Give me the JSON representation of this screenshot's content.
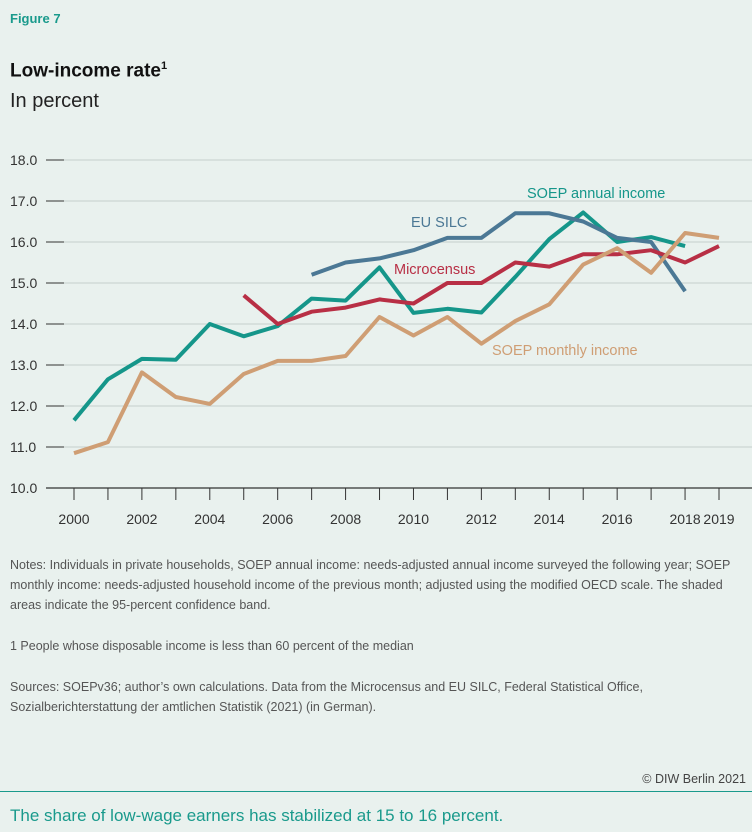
{
  "figure_label": "Figure 7",
  "title": "Low-income rate",
  "title_footnote": "1",
  "subtitle": "In percent",
  "notes": "Notes: Individuals in private households, SOEP annual income: needs-adjusted annual income surveyed the following year; SOEP monthly income: needs-adjusted household income of the previous month; adjusted using the modified OECD scale. The shaded areas indicate the 95-percent confidence band.",
  "footnote": "1  People whose disposable income is less than 60 percent of the median",
  "sources": "Sources: SOEPv36; author’s own calculations. Data from the Microcensus and EU SILC, Federal Statistical Office, Sozialberichterstattung der amtlichen Statistik (2021) (in German).",
  "copyright": "© DIW Berlin 2021",
  "takeaway": "The share of low-wage earners has stabilized at 15 to 16 percent.",
  "chart_data": {
    "type": "line",
    "xlim": [
      2000,
      2019
    ],
    "ylim": [
      10,
      18
    ],
    "y_ticks": [
      "10.0",
      "11.0",
      "12.0",
      "13.0",
      "14.0",
      "15.0",
      "16.0",
      "17.0",
      "18.0"
    ],
    "x_tick_labels": [
      "2000",
      "2002",
      "2004",
      "2006",
      "2008",
      "2010",
      "2012",
      "2014",
      "2016",
      "2018",
      "2019"
    ],
    "grid": true,
    "series": [
      {
        "name": "SOEP annual income",
        "color": "#15968a",
        "x": [
          2000,
          2001,
          2002,
          2003,
          2004,
          2005,
          2006,
          2007,
          2008,
          2009,
          2010,
          2011,
          2012,
          2013,
          2014,
          2015,
          2016,
          2017,
          2018
        ],
        "y": [
          11.65,
          12.65,
          13.15,
          13.13,
          14.0,
          13.7,
          13.95,
          14.62,
          14.57,
          15.38,
          14.27,
          14.37,
          14.28,
          15.15,
          16.07,
          16.72,
          16.0,
          16.12,
          15.9
        ]
      },
      {
        "name": "EU SILC",
        "color": "#4b7895",
        "x": [
          2007,
          2008,
          2009,
          2010,
          2011,
          2012,
          2013,
          2014,
          2015,
          2016,
          2017,
          2018
        ],
        "y": [
          15.2,
          15.5,
          15.6,
          15.8,
          16.1,
          16.1,
          16.7,
          16.7,
          16.5,
          16.1,
          16.0,
          14.8
        ]
      },
      {
        "name": "Microcensus",
        "color": "#b82f45",
        "x": [
          2005,
          2006,
          2007,
          2008,
          2009,
          2010,
          2011,
          2012,
          2013,
          2014,
          2015,
          2016,
          2017,
          2018,
          2019
        ],
        "y": [
          14.7,
          14.0,
          14.3,
          14.4,
          14.6,
          14.5,
          15.0,
          15.0,
          15.5,
          15.4,
          15.7,
          15.7,
          15.8,
          15.5,
          15.9
        ]
      },
      {
        "name": "SOEP monthly income",
        "color": "#cf9e74",
        "x": [
          2000,
          2001,
          2002,
          2003,
          2004,
          2005,
          2006,
          2007,
          2008,
          2009,
          2010,
          2011,
          2012,
          2013,
          2014,
          2015,
          2016,
          2017,
          2018,
          2019
        ],
        "y": [
          10.85,
          11.12,
          12.82,
          12.22,
          12.05,
          12.78,
          13.1,
          13.1,
          13.22,
          14.17,
          13.72,
          14.17,
          13.52,
          14.07,
          14.48,
          15.45,
          15.85,
          15.25,
          16.22,
          16.1
        ]
      }
    ],
    "annotations": [
      {
        "text": "SOEP annual income",
        "series": "SOEP annual income"
      },
      {
        "text": "EU SILC",
        "series": "EU SILC"
      },
      {
        "text": "Microcensus",
        "series": "Microcensus"
      },
      {
        "text": "SOEP monthly income",
        "series": "SOEP monthly income"
      }
    ]
  }
}
